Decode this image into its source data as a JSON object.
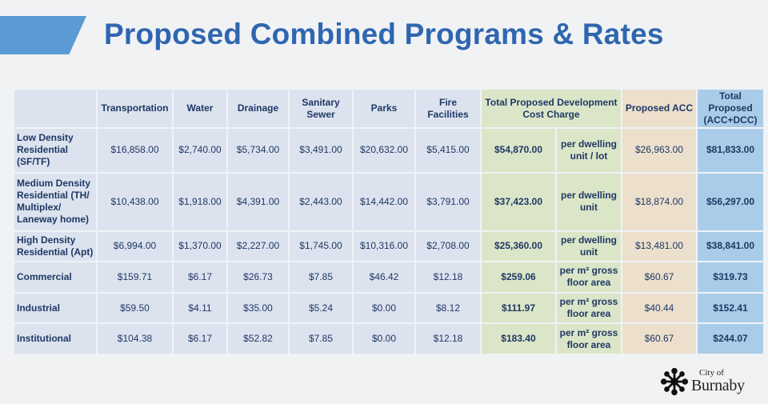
{
  "slide": {
    "title": "Proposed Combined Programs & Rates"
  },
  "table": {
    "headers": {
      "transportation": "Transportation",
      "water": "Water",
      "drainage": "Drainage",
      "sanitary_sewer": "Sanitary Sewer",
      "parks": "Parks",
      "fire_facilities": "Fire Facilities",
      "total_dcc": "Total Proposed Development Cost Charge",
      "proposed_acc": "Proposed ACC",
      "total_proposed": "Total Proposed (ACC+DCC)"
    },
    "rows": [
      {
        "label": "Low Density Residential (SF/TF)",
        "transportation": "$16,858.00",
        "water": "$2,740.00",
        "drainage": "$5,734.00",
        "sanitary_sewer": "$3,491.00",
        "parks": "$20,632.00",
        "fire_facilities": "$5,415.00",
        "total_dcc": "$54,870.00",
        "unit": "per dwelling unit / lot",
        "acc": "$26,963.00",
        "total": "$81,833.00"
      },
      {
        "label": "Medium Density Residential (TH/ Multiplex/ Laneway home)",
        "transportation": "$10,438.00",
        "water": "$1,918.00",
        "drainage": "$4,391.00",
        "sanitary_sewer": "$2,443.00",
        "parks": "$14,442.00",
        "fire_facilities": "$3,791.00",
        "total_dcc": "$37,423.00",
        "unit": "per dwelling unit",
        "acc": "$18,874.00",
        "total": "$56,297.00"
      },
      {
        "label": "High Density Residential (Apt)",
        "transportation": "$6,994.00",
        "water": "$1,370.00",
        "drainage": "$2,227.00",
        "sanitary_sewer": "$1,745.00",
        "parks": "$10,316.00",
        "fire_facilities": "$2,708.00",
        "total_dcc": "$25,360.00",
        "unit": "per dwelling unit",
        "acc": "$13,481.00",
        "total": "$38,841.00"
      },
      {
        "label": "Commercial",
        "transportation": "$159.71",
        "water": "$6.17",
        "drainage": "$26.73",
        "sanitary_sewer": "$7.85",
        "parks": "$46.42",
        "fire_facilities": "$12.18",
        "total_dcc": "$259.06",
        "unit": "per m² gross floor area",
        "acc": "$60.67",
        "total": "$319.73"
      },
      {
        "label": "Industrial",
        "transportation": "$59.50",
        "water": "$4.11",
        "drainage": "$35.00",
        "sanitary_sewer": "$5.24",
        "parks": "$0.00",
        "fire_facilities": "$8.12",
        "total_dcc": "$111.97",
        "unit": "per m² gross floor area",
        "acc": "$40.44",
        "total": "$152.41"
      },
      {
        "label": "Institutional",
        "transportation": "$104.38",
        "water": "$6.17",
        "drainage": "$52.82",
        "sanitary_sewer": "$7.85",
        "parks": "$0.00",
        "fire_facilities": "$12.18",
        "total_dcc": "$183.40",
        "unit": "per m² gross floor area",
        "acc": "$60.67",
        "total": "$244.07"
      }
    ]
  },
  "logo": {
    "city_of": "City of",
    "name": "Burnaby",
    "icon": "snowflake-emblem-icon"
  },
  "colors": {
    "title": "#2f66b0",
    "accent_bar": "#5b9bd5",
    "cell": "#dce3ef",
    "dcc_column": "#dbe6c8",
    "acc_column": "#ece0cd",
    "total_column": "#a9cde9",
    "text": "#1f3864"
  }
}
